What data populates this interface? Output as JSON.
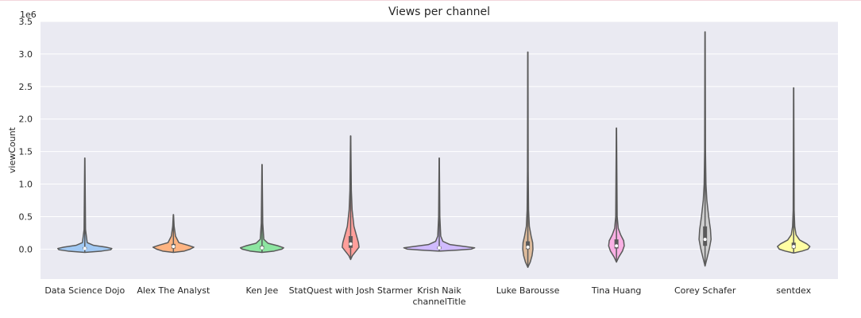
{
  "chart_data": {
    "type": "violin",
    "title": "Views per channel",
    "xlabel": "channelTitle",
    "ylabel": "viewCount",
    "y_offset_label": "1e6",
    "y_scale_factor": 1000000,
    "ylim": [
      -0.46,
      3.5
    ],
    "y_ticks": [
      0,
      0.5,
      1,
      1.5,
      2,
      2.5,
      3,
      3.5
    ],
    "y_tick_labels": [
      "0.0",
      "0.5",
      "1.0",
      "1.5",
      "2.0",
      "2.5",
      "3.0",
      "3.5"
    ],
    "grid": true,
    "background": "#eaeaf2",
    "outline_color": "#5a5a5a",
    "categories": [
      "Data Science Dojo",
      "Alex The Analyst",
      "Ken Jee",
      "StatQuest with Josh Starmer",
      "Krish Naik",
      "Luke Barousse",
      "Tina Huang",
      "Corey Schafer",
      "sentdex"
    ],
    "series": [
      {
        "color": "#a1c9f4",
        "min": -0.05,
        "max": 1.4,
        "median": 0.01,
        "q1": 0.0,
        "q3": 0.03,
        "profile": [
          [
            -0.05,
            0
          ],
          [
            -0.03,
            0.28
          ],
          [
            -0.01,
            0.43
          ],
          [
            0.01,
            0.45
          ],
          [
            0.03,
            0.35
          ],
          [
            0.06,
            0.14
          ],
          [
            0.1,
            0.04
          ],
          [
            0.3,
            0.012
          ],
          [
            1.4,
            0.002
          ]
        ]
      },
      {
        "color": "#ffb482",
        "min": -0.05,
        "max": 0.53,
        "median": 0.04,
        "q1": 0.01,
        "q3": 0.08,
        "profile": [
          [
            -0.05,
            0
          ],
          [
            -0.03,
            0.18
          ],
          [
            0.0,
            0.28
          ],
          [
            0.03,
            0.34
          ],
          [
            0.06,
            0.24
          ],
          [
            0.1,
            0.09
          ],
          [
            0.2,
            0.035
          ],
          [
            0.35,
            0.012
          ],
          [
            0.53,
            0.002
          ]
        ]
      },
      {
        "color": "#8de5a1",
        "min": -0.05,
        "max": 1.3,
        "median": 0.02,
        "q1": 0.0,
        "q3": 0.05,
        "profile": [
          [
            -0.05,
            0
          ],
          [
            -0.03,
            0.2
          ],
          [
            0.0,
            0.33
          ],
          [
            0.02,
            0.36
          ],
          [
            0.05,
            0.27
          ],
          [
            0.09,
            0.1
          ],
          [
            0.15,
            0.03
          ],
          [
            0.4,
            0.012
          ],
          [
            1.3,
            0.002
          ]
        ]
      },
      {
        "color": "#ff9f9b",
        "min": -0.16,
        "max": 1.74,
        "median": 0.08,
        "q1": 0.02,
        "q3": 0.2,
        "profile": [
          [
            -0.16,
            0
          ],
          [
            -0.1,
            0.03
          ],
          [
            -0.03,
            0.09
          ],
          [
            0.03,
            0.14
          ],
          [
            0.1,
            0.13
          ],
          [
            0.2,
            0.1
          ],
          [
            0.35,
            0.055
          ],
          [
            0.6,
            0.025
          ],
          [
            0.9,
            0.012
          ],
          [
            1.74,
            0.002
          ]
        ]
      },
      {
        "color": "#d0bbff",
        "min": -0.03,
        "max": 1.4,
        "median": 0.02,
        "q1": 0.0,
        "q3": 0.04,
        "profile": [
          [
            -0.03,
            0
          ],
          [
            -0.015,
            0.3
          ],
          [
            0.0,
            0.53
          ],
          [
            0.02,
            0.59
          ],
          [
            0.04,
            0.43
          ],
          [
            0.07,
            0.18
          ],
          [
            0.12,
            0.06
          ],
          [
            0.2,
            0.025
          ],
          [
            0.5,
            0.01
          ],
          [
            1.4,
            0.002
          ]
        ]
      },
      {
        "color": "#debb9b",
        "min": -0.28,
        "max": 3.03,
        "median": 0.03,
        "q1": 0.0,
        "q3": 0.12,
        "profile": [
          [
            -0.28,
            0
          ],
          [
            -0.2,
            0.04
          ],
          [
            -0.1,
            0.07
          ],
          [
            0.0,
            0.085
          ],
          [
            0.1,
            0.08
          ],
          [
            0.2,
            0.055
          ],
          [
            0.35,
            0.025
          ],
          [
            0.6,
            0.012
          ],
          [
            1.2,
            0.006
          ],
          [
            3.03,
            0.002
          ]
        ]
      },
      {
        "color": "#fab0e4",
        "min": -0.2,
        "max": 1.86,
        "median": 0.05,
        "q1": 0.01,
        "q3": 0.15,
        "profile": [
          [
            -0.2,
            0
          ],
          [
            -0.12,
            0.04
          ],
          [
            -0.03,
            0.1
          ],
          [
            0.05,
            0.13
          ],
          [
            0.13,
            0.12
          ],
          [
            0.22,
            0.07
          ],
          [
            0.32,
            0.03
          ],
          [
            0.5,
            0.012
          ],
          [
            1.86,
            0.002
          ]
        ]
      },
      {
        "color": "#cfcfcf",
        "min": -0.26,
        "max": 3.34,
        "median": 0.15,
        "q1": 0.05,
        "q3": 0.35,
        "profile": [
          [
            -0.26,
            0
          ],
          [
            -0.15,
            0.03
          ],
          [
            0.0,
            0.07
          ],
          [
            0.15,
            0.1
          ],
          [
            0.3,
            0.09
          ],
          [
            0.5,
            0.06
          ],
          [
            0.75,
            0.03
          ],
          [
            1.0,
            0.015
          ],
          [
            1.5,
            0.007
          ],
          [
            3.34,
            0.002
          ]
        ]
      },
      {
        "color": "#fffea3",
        "min": -0.06,
        "max": 2.48,
        "median": 0.04,
        "q1": 0.01,
        "q3": 0.1,
        "profile": [
          [
            -0.06,
            0
          ],
          [
            -0.03,
            0.14
          ],
          [
            0.0,
            0.24
          ],
          [
            0.04,
            0.27
          ],
          [
            0.08,
            0.22
          ],
          [
            0.14,
            0.1
          ],
          [
            0.22,
            0.04
          ],
          [
            0.35,
            0.018
          ],
          [
            0.6,
            0.008
          ],
          [
            2.48,
            0.002
          ]
        ]
      }
    ]
  }
}
